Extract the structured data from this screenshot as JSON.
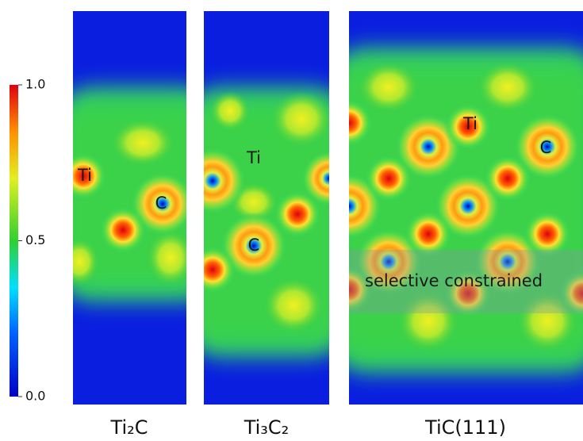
{
  "colorbar": {
    "min": 0,
    "max": 1,
    "ticks": [
      {
        "value": 0,
        "label": "0.0"
      },
      {
        "value": 0.5,
        "label": "0.5"
      },
      {
        "value": 1,
        "label": "1.0"
      }
    ]
  },
  "panels": [
    {
      "label": "Ti₂C",
      "atom_labels": [
        "Ti",
        "C"
      ]
    },
    {
      "label": "Ti₃C₂",
      "atom_labels": [
        "Ti",
        "C"
      ]
    },
    {
      "label": "TiC(111)",
      "atom_labels": [
        "Ti",
        "C"
      ],
      "annotation": "selective constrained"
    }
  ]
}
